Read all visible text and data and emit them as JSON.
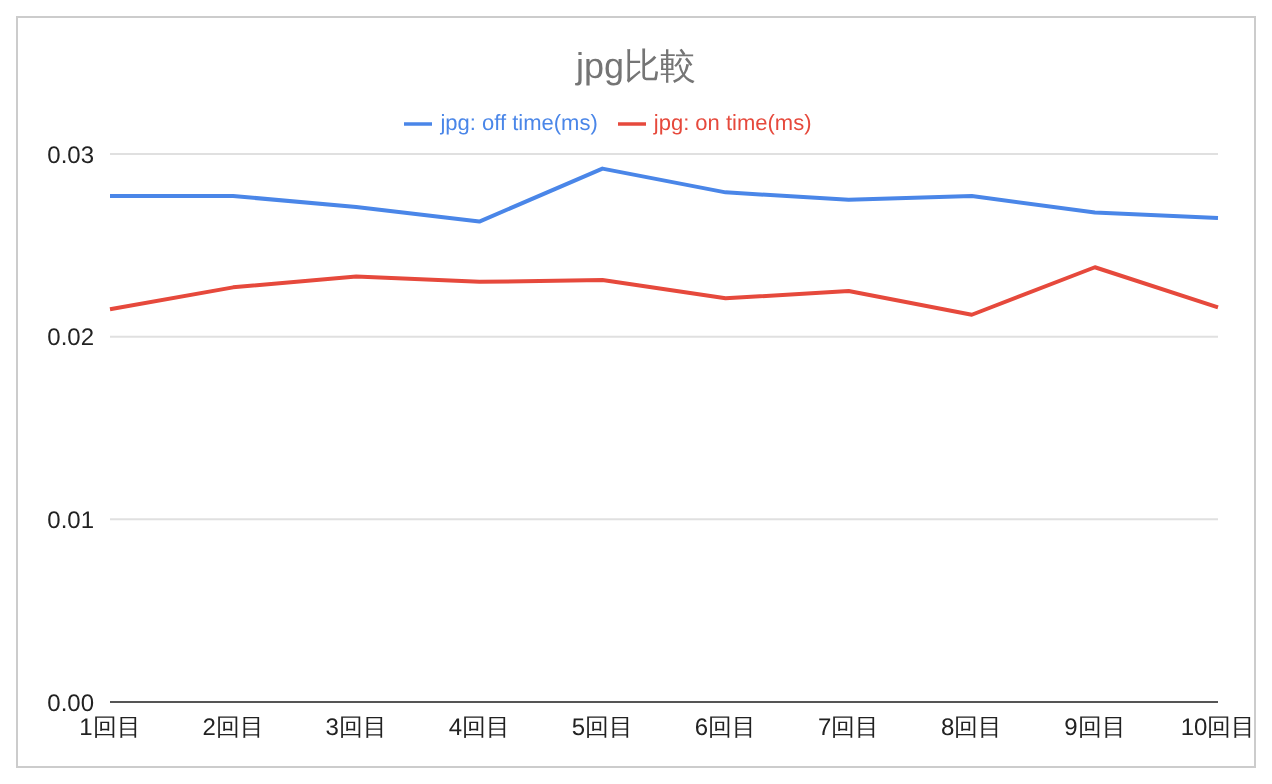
{
  "chart_data": {
    "type": "line",
    "title": "jpg比較",
    "categories": [
      "1回目",
      "2回目",
      "3回目",
      "4回目",
      "5回目",
      "6回目",
      "7回目",
      "8回目",
      "9回目",
      "10回目"
    ],
    "series": [
      {
        "name": "jpg: off time(ms)",
        "color": "#4a86e8",
        "values": [
          0.0277,
          0.0277,
          0.0271,
          0.0263,
          0.0292,
          0.0279,
          0.0275,
          0.0277,
          0.0268,
          0.0265
        ]
      },
      {
        "name": "jpg: on time(ms)",
        "color": "#e6493c",
        "values": [
          0.0215,
          0.0227,
          0.0233,
          0.023,
          0.0231,
          0.0221,
          0.0225,
          0.0212,
          0.0238,
          0.0216
        ]
      }
    ],
    "ylim": [
      0,
      0.03
    ],
    "yticks": [
      {
        "value": 0,
        "label": "0.00"
      },
      {
        "value": 0.01,
        "label": "0.01"
      },
      {
        "value": 0.02,
        "label": "0.02"
      },
      {
        "value": 0.03,
        "label": "0.03"
      }
    ],
    "grid": "y",
    "legend": "top",
    "marker": "none",
    "line_style": "solid"
  }
}
